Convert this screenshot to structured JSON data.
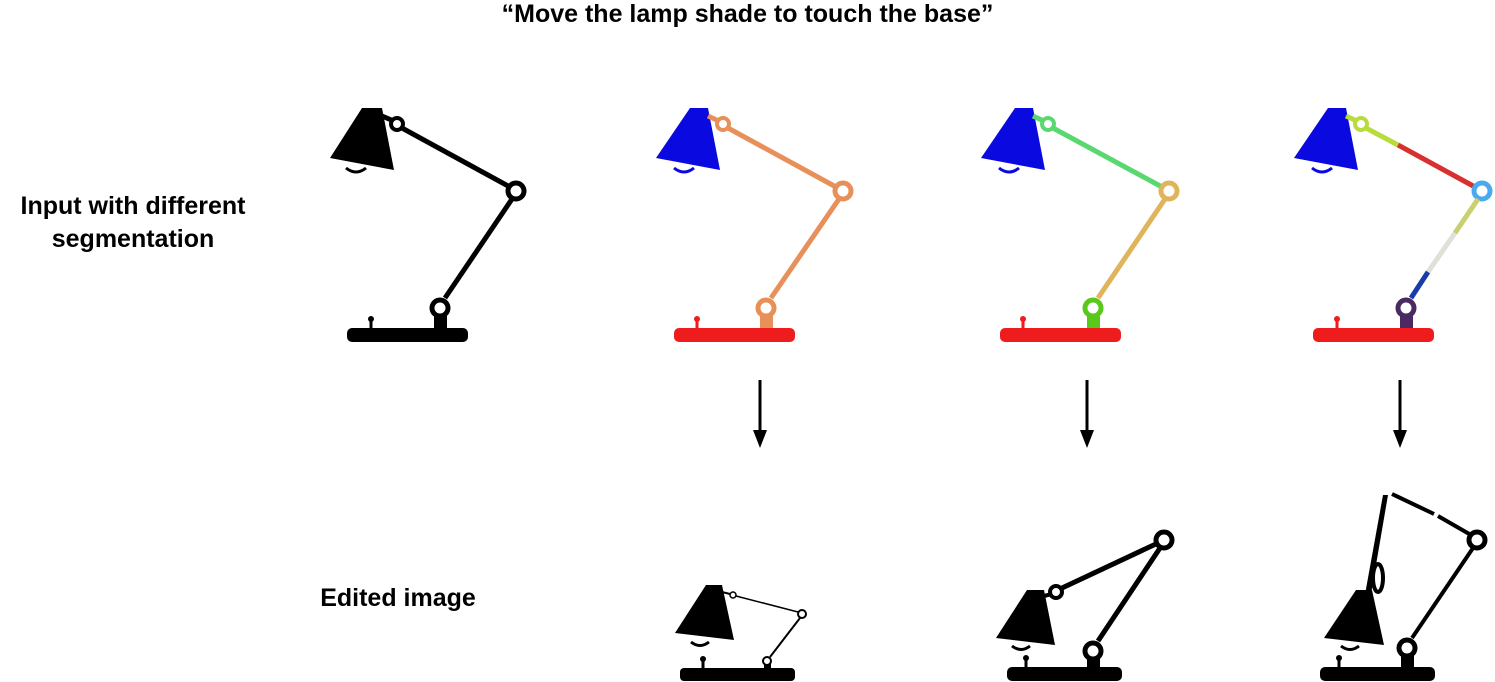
{
  "title": "“Move the lamp shade to touch the base”",
  "labels": {
    "input_line1": "Input with different",
    "input_line2": "segmentation",
    "edited": "Edited image"
  },
  "colors": {
    "ink": "#000000",
    "shade": "#0a0ae0",
    "base": "#ee1c1c",
    "seg1_arm": "#e8905a",
    "seg2_upper_arm": "#5ad870",
    "seg2_lower_arm": "#e0b45a",
    "seg2_bottom_joint": "#5ac81a",
    "seg3_upper_link": "#b8dc3c",
    "seg3_upper_arm": "#d83030",
    "seg3_mid_joint": "#4aaaf0",
    "seg3_lower_arm_a": "#c8d070",
    "seg3_lower_arm_b": "#e0e0d8",
    "seg3_lower_arm_c": "#1a3caa",
    "seg3_bottom_joint": "#4a2a60"
  }
}
